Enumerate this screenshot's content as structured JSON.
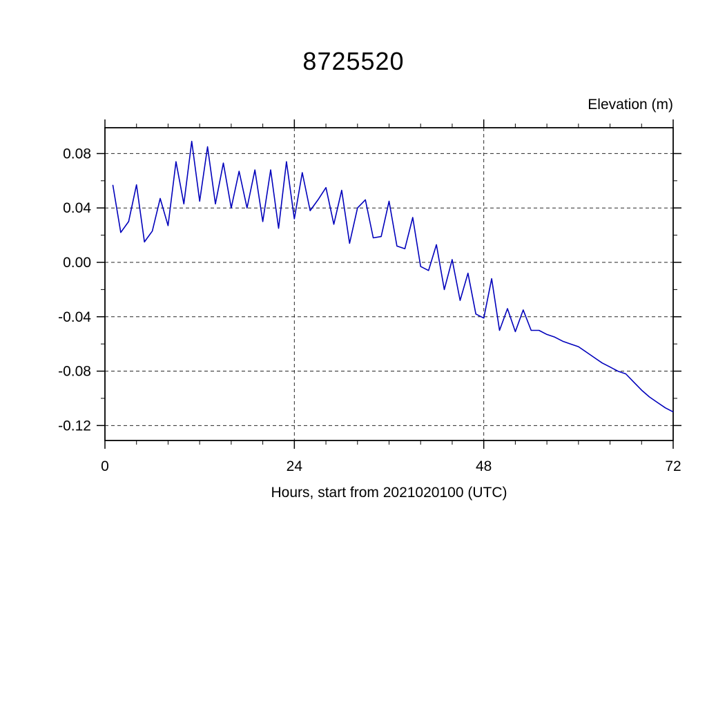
{
  "title": "8725520",
  "labels": {
    "y_axis_right": "Elevation (m)",
    "x_axis": "Hours, start from 2021020100 (UTC)"
  },
  "chart_data": {
    "type": "line",
    "title": "8725520",
    "xlabel": "Hours, start from 2021020100 (UTC)",
    "ylabel": "Elevation (m)",
    "xlim": [
      0,
      72
    ],
    "ylim": [
      -0.131,
      0.099
    ],
    "grid": "dashed",
    "legend": "none",
    "line_color": "#0000bb",
    "frame_color": "#000000",
    "x_major_ticks": [
      0,
      24,
      48,
      72
    ],
    "x_major_labels": [
      "0",
      "24",
      "48",
      "72"
    ],
    "x_minor_step": 4,
    "y_major_ticks": [
      0.08,
      0.04,
      0.0,
      -0.04,
      -0.08,
      -0.12
    ],
    "y_major_labels": [
      "0.08",
      "0.04",
      "0.00",
      "-0.04",
      "-0.08",
      "-0.12"
    ],
    "y_minor_step": 0.02,
    "x_gridlines": [
      24,
      48
    ],
    "series": [
      {
        "name": "elevation",
        "x": [
          1,
          2,
          3,
          4,
          5,
          6,
          7,
          8,
          9,
          10,
          11,
          12,
          13,
          14,
          15,
          16,
          17,
          18,
          19,
          20,
          21,
          22,
          23,
          24,
          25,
          26,
          27,
          28,
          29,
          30,
          31,
          32,
          33,
          34,
          35,
          36,
          37,
          38,
          39,
          40,
          41,
          42,
          43,
          44,
          45,
          46,
          47,
          48,
          49,
          50,
          51,
          52,
          53,
          54,
          55,
          56,
          57,
          58,
          59,
          60,
          61,
          62,
          63,
          64,
          65,
          66,
          67,
          68,
          69,
          70,
          71,
          72
        ],
        "values": [
          0.057,
          0.022,
          0.03,
          0.057,
          0.015,
          0.023,
          0.047,
          0.027,
          0.074,
          0.043,
          0.089,
          0.045,
          0.085,
          0.043,
          0.073,
          0.04,
          0.067,
          0.04,
          0.068,
          0.03,
          0.068,
          0.025,
          0.074,
          0.032,
          0.066,
          0.038,
          0.046,
          0.055,
          0.028,
          0.053,
          0.014,
          0.04,
          0.046,
          0.018,
          0.019,
          0.045,
          0.012,
          0.01,
          0.033,
          -0.003,
          -0.006,
          0.013,
          -0.02,
          0.002,
          -0.028,
          -0.008,
          -0.038,
          -0.041,
          -0.012,
          -0.05,
          -0.034,
          -0.051,
          -0.035,
          -0.05,
          -0.05,
          -0.053,
          -0.055,
          -0.058,
          -0.06,
          -0.062,
          -0.066,
          -0.07,
          -0.074,
          -0.077,
          -0.08,
          -0.082,
          -0.088,
          -0.094,
          -0.099,
          -0.103,
          -0.107,
          -0.11
        ]
      }
    ]
  }
}
